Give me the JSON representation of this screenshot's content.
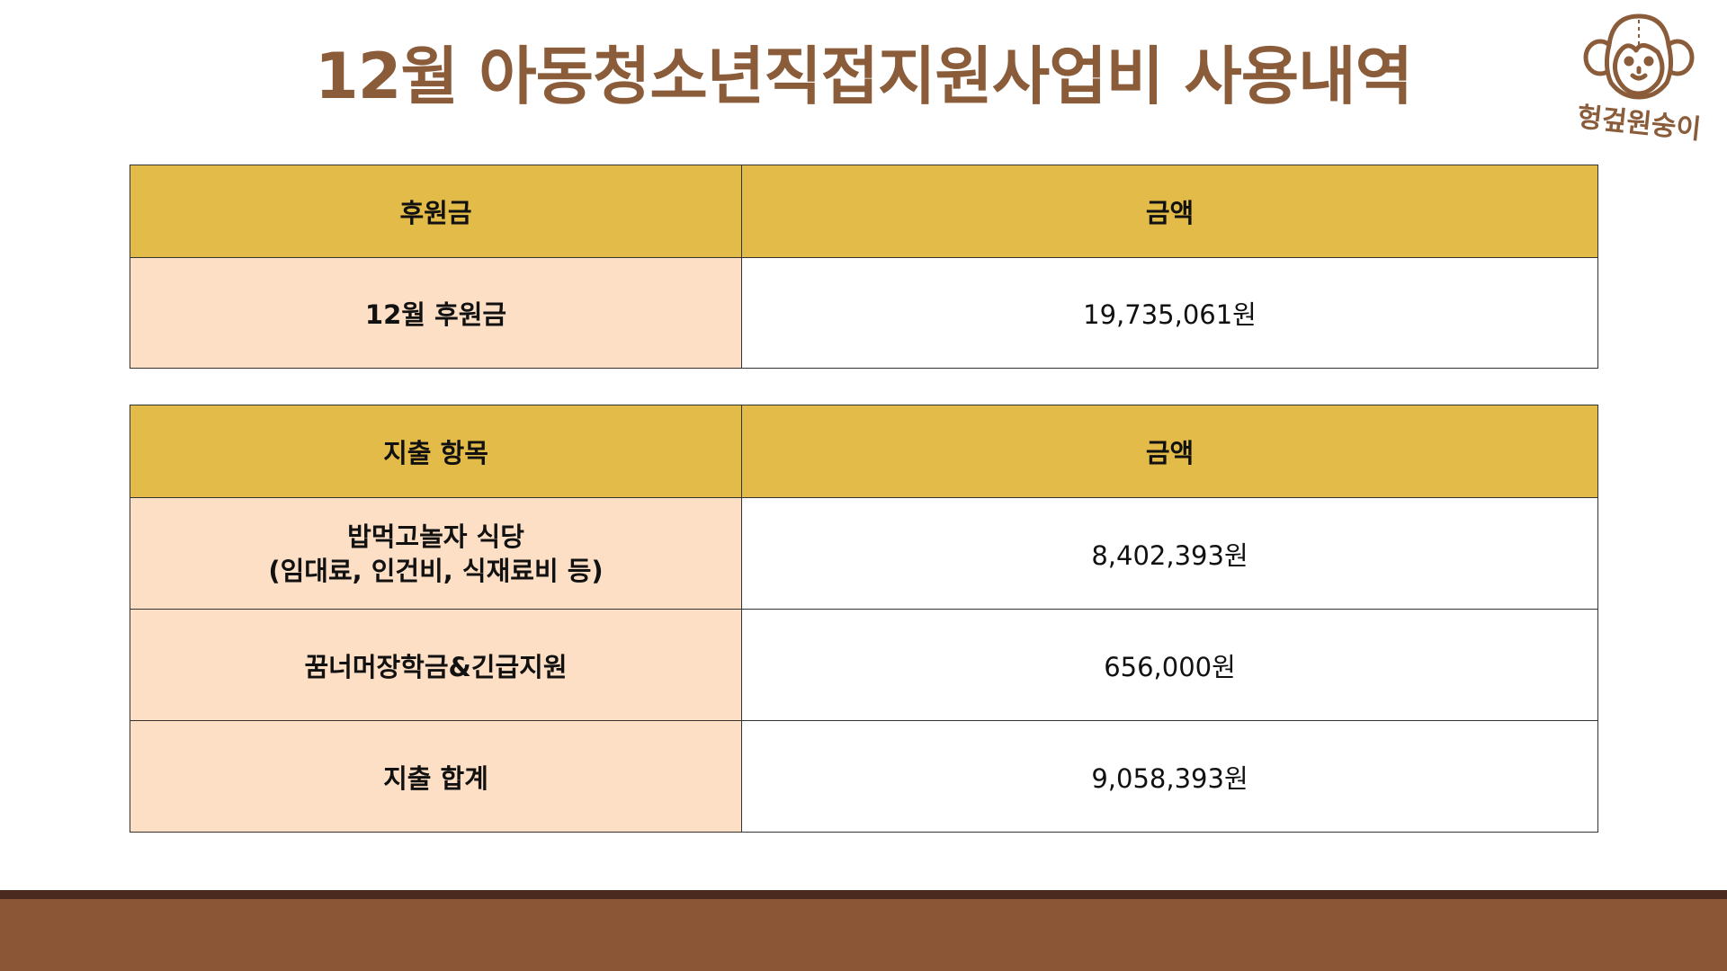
{
  "title": "12월 아동청소년직접지원사업비 사용내역",
  "logo": {
    "text": "헝겊원숭이",
    "icon": "monkey-face-icon",
    "color": "#8a5c3a"
  },
  "colors": {
    "header_bg": "#e3bb48",
    "label_bg": "#fddfc5",
    "footer": "#8a5636",
    "footer_stripe": "#4a2a1e"
  },
  "donation_table": {
    "headers": [
      "후원금",
      "금액"
    ],
    "rows": [
      {
        "label": "12월 후원금",
        "amount": "19,735,061원"
      }
    ]
  },
  "expense_table": {
    "headers": [
      "지출 항목",
      "금액"
    ],
    "rows": [
      {
        "label_line1": "밥먹고놀자 식당",
        "label_line2": "(임대료, 인건비, 식재료비 등)",
        "amount": "8,402,393원"
      },
      {
        "label": "꿈너머장학금&긴급지원",
        "amount": "656,000원"
      },
      {
        "label": "지출 합계",
        "amount": "9,058,393원"
      }
    ]
  }
}
